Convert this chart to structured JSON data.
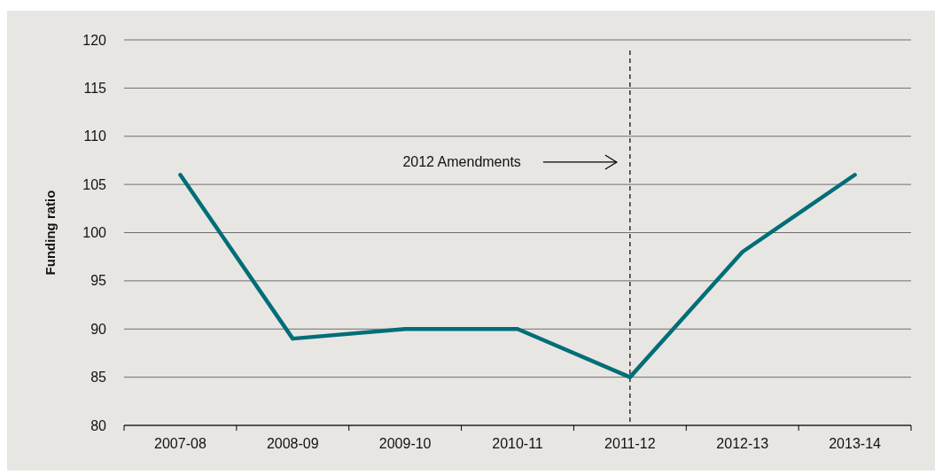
{
  "chart_data": {
    "type": "line",
    "ylabel": "Funding ratio",
    "categories": [
      "2007-08",
      "2008-09",
      "2009-10",
      "2010-11",
      "2011-12",
      "2012-13",
      "2013-14"
    ],
    "series": [
      {
        "color": "#006e78",
        "values": [
          106,
          89,
          90,
          90,
          85,
          98,
          106
        ]
      }
    ],
    "ylim": [
      80,
      120
    ],
    "yticks": [
      80,
      85,
      90,
      95,
      100,
      105,
      110,
      115,
      120
    ],
    "grid": "y",
    "marker": "none",
    "line_style": "solid",
    "ref_lines": [
      {
        "axis": "x",
        "value": "2011-12",
        "label": "2012 Amendments",
        "color": "#000000",
        "line_style": "dashed"
      }
    ]
  }
}
